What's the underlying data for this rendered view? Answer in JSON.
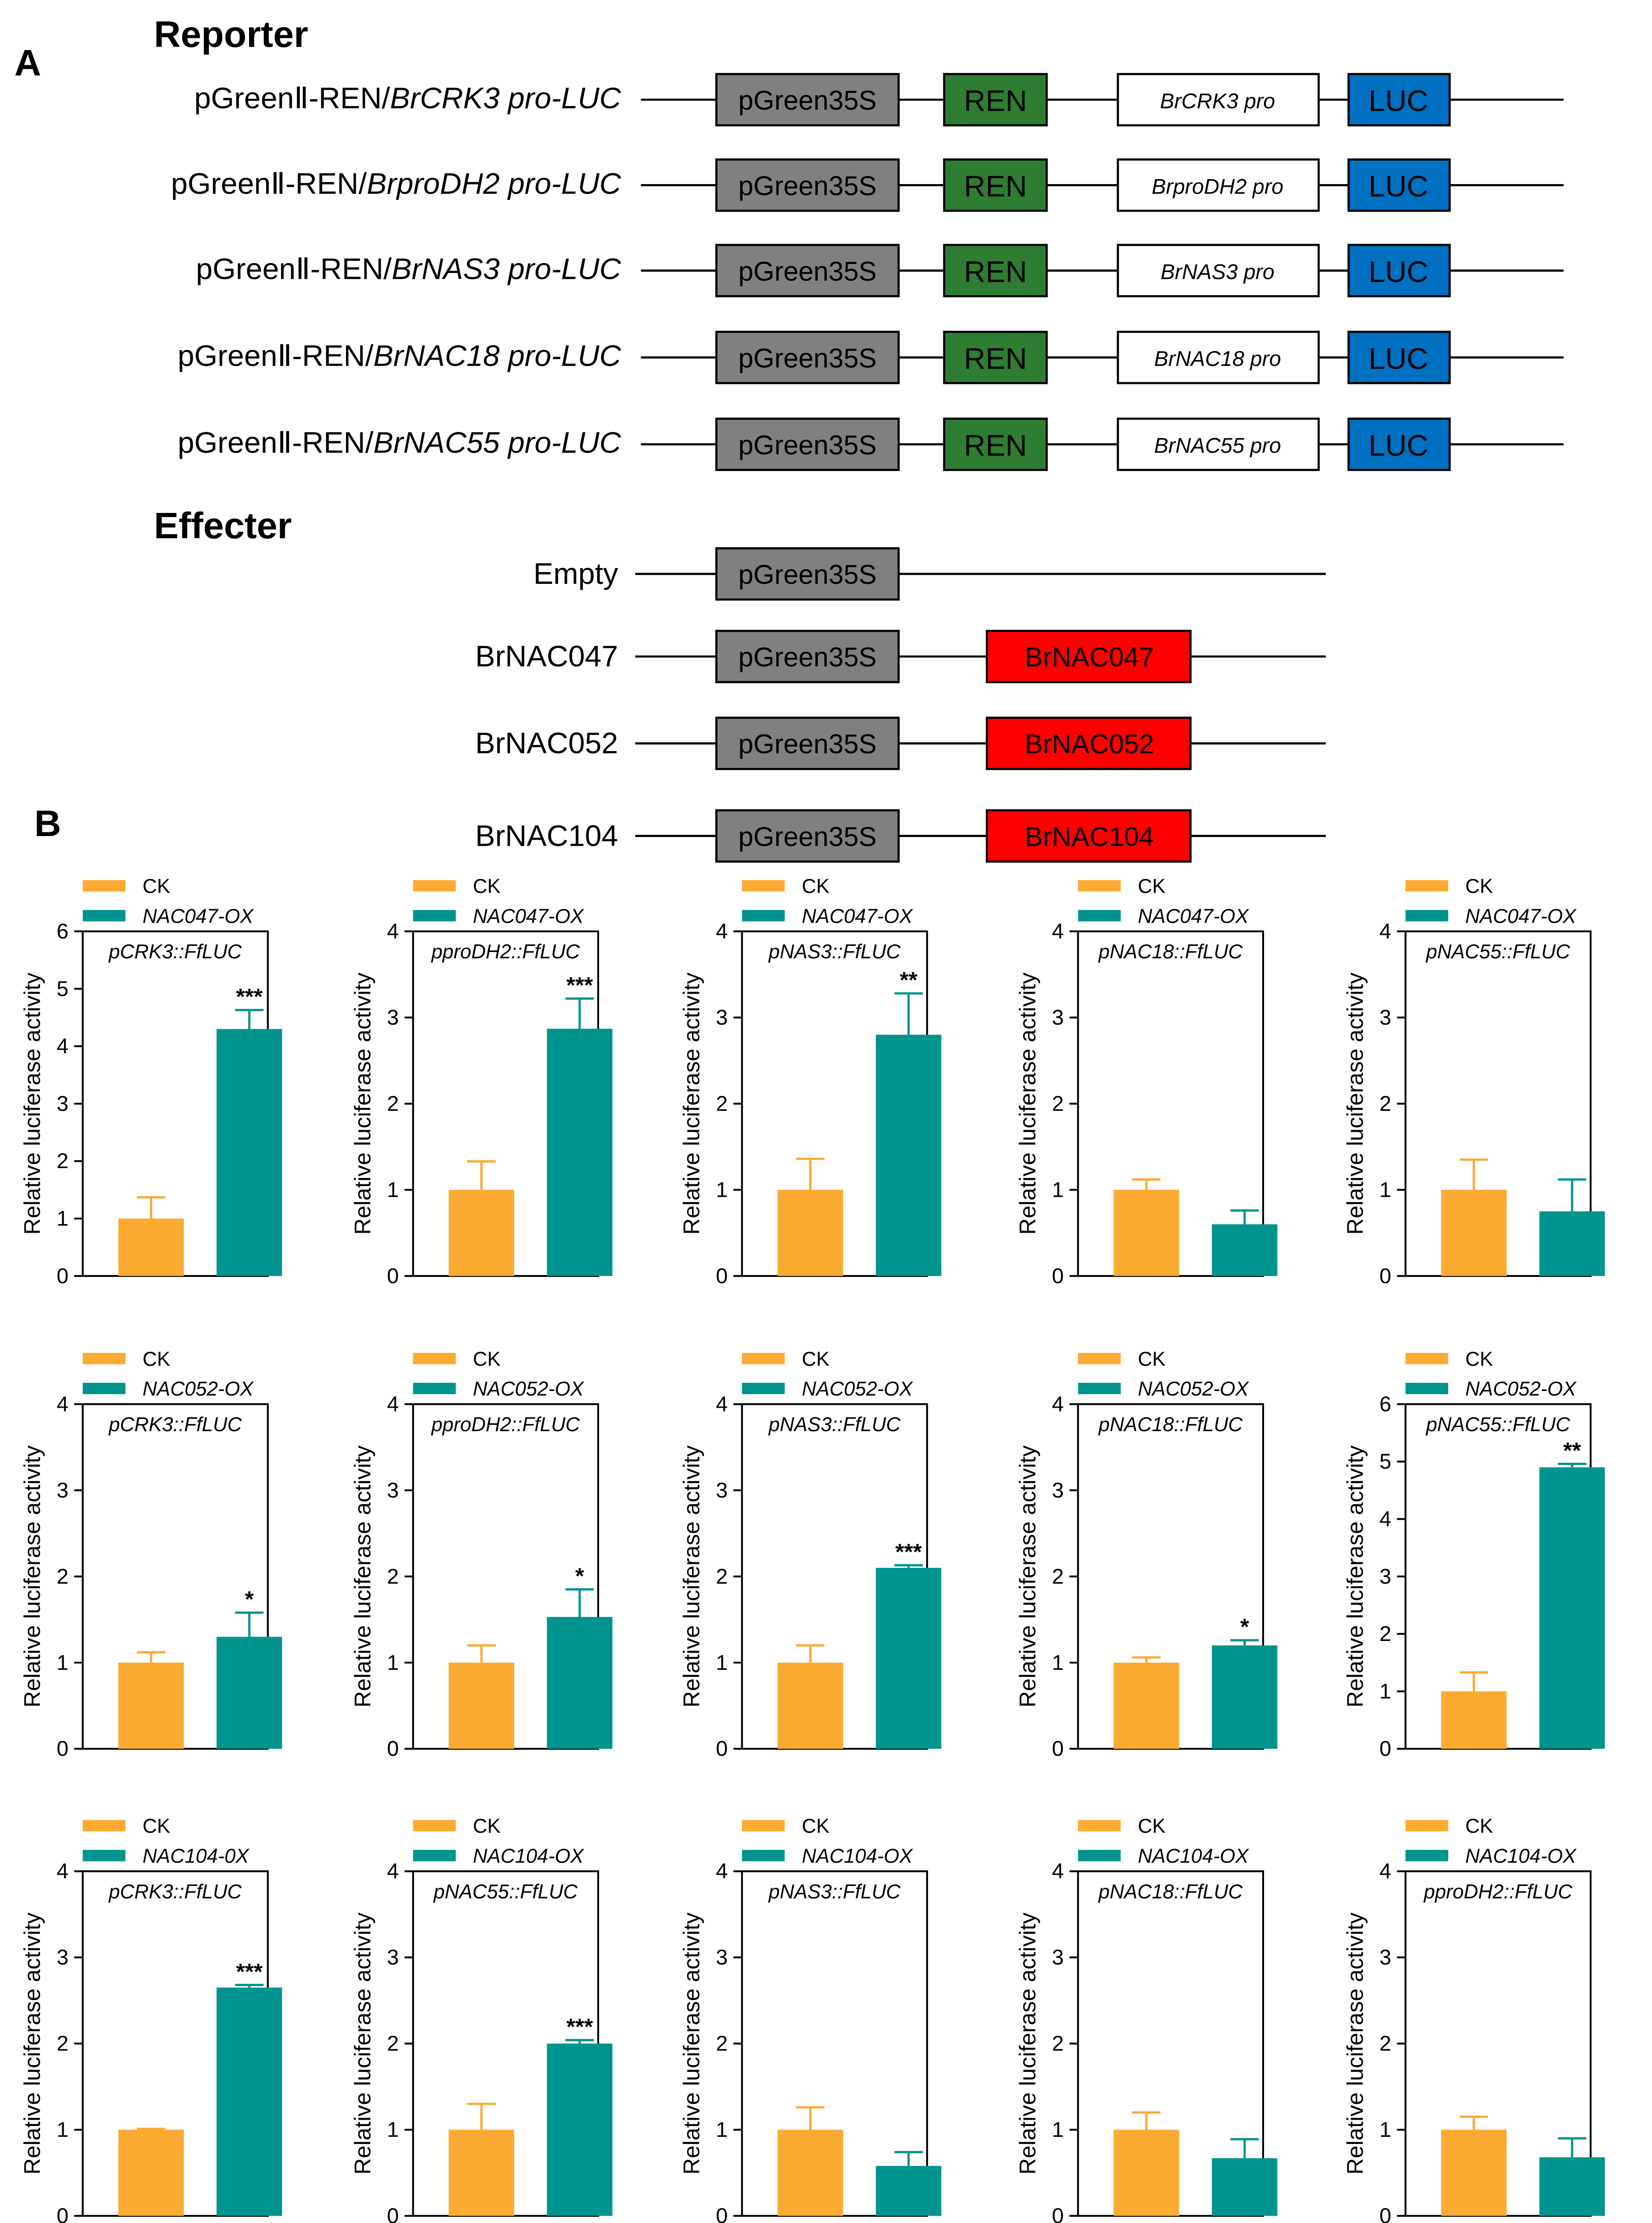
{
  "panel_a": {
    "label": "A",
    "reporter_title": "Reporter",
    "effecter_title": "Effecter",
    "reporters": [
      {
        "prefix": "pGreenⅡ-REN/",
        "name": "BrCRK3 pro-LUC",
        "promoter": "BrCRK3 pro",
        "vector": "pGreen35S",
        "ren": "REN",
        "luc": "LUC"
      },
      {
        "prefix": "pGreenⅡ-REN/",
        "name": "BrproDH2 pro-LUC",
        "promoter": "BrproDH2 pro",
        "vector": "pGreen35S",
        "ren": "REN",
        "luc": "LUC"
      },
      {
        "prefix": "pGreenⅡ-REN/",
        "name": "BrNAS3 pro-LUC",
        "promoter": "BrNAS3 pro",
        "vector": "pGreen35S",
        "ren": "REN",
        "luc": "LUC"
      },
      {
        "prefix": "pGreenⅡ-REN/",
        "name": "BrNAC18 pro-LUC",
        "promoter": "BrNAC18 pro",
        "vector": "pGreen35S",
        "ren": "REN",
        "luc": "LUC"
      },
      {
        "prefix": "pGreenⅡ-REN/",
        "name": "BrNAC55 pro-LUC",
        "promoter": "BrNAC55 pro",
        "vector": "pGreen35S",
        "ren": "REN",
        "luc": "LUC"
      }
    ],
    "effecters": [
      {
        "name": "Empty",
        "vector": "pGreen35S",
        "gene": ""
      },
      {
        "name": "BrNAC047",
        "vector": "pGreen35S",
        "gene": "BrNAC047"
      },
      {
        "name": "BrNAC052",
        "vector": "pGreen35S",
        "gene": "BrNAC052"
      },
      {
        "name": "BrNAC104",
        "vector": "pGreen35S",
        "gene": "BrNAC104"
      }
    ],
    "colors": {
      "vector": "#808080",
      "ren": "#2e7d32",
      "luc": "#0070c0",
      "gene": "#ff0000",
      "promoter": "#ffffff"
    }
  },
  "panel_b": {
    "label": "B",
    "colors": {
      "ck": "#fbaa32",
      "ox": "#00948f"
    }
  },
  "chart_data": [
    {
      "type": "bar",
      "row": 0,
      "col": 0,
      "title": "pCRK3::FfLUC",
      "legend": [
        "CK",
        "NAC047-OX"
      ],
      "ylabel": "Relative luciferase activity",
      "ylim": [
        0,
        6
      ],
      "yticks": [
        0,
        1,
        2,
        3,
        4,
        5,
        6
      ],
      "values": [
        1.0,
        4.3
      ],
      "errors": [
        0.37,
        0.33
      ],
      "sig": "***"
    },
    {
      "type": "bar",
      "row": 0,
      "col": 1,
      "title": "pproDH2::FfLUC",
      "legend": [
        "CK",
        "NAC047-OX"
      ],
      "ylabel": "Relative luciferase activity",
      "ylim": [
        0,
        4
      ],
      "yticks": [
        0,
        1,
        2,
        3,
        4
      ],
      "values": [
        1.0,
        2.87
      ],
      "errors": [
        0.33,
        0.35
      ],
      "sig": "***"
    },
    {
      "type": "bar",
      "row": 0,
      "col": 2,
      "title": "pNAS3::FfLUC",
      "legend": [
        "CK",
        "NAC047-OX"
      ],
      "ylabel": "Relative luciferase activity",
      "ylim": [
        0,
        4
      ],
      "yticks": [
        0,
        1,
        2,
        3,
        4
      ],
      "values": [
        1.0,
        2.8
      ],
      "errors": [
        0.36,
        0.48
      ],
      "sig": "**"
    },
    {
      "type": "bar",
      "row": 0,
      "col": 3,
      "title": "pNAC18::FfLUC",
      "legend": [
        "CK",
        "NAC047-OX"
      ],
      "ylabel": "Relative luciferase activity",
      "ylim": [
        0,
        4
      ],
      "yticks": [
        0,
        1,
        2,
        3,
        4
      ],
      "values": [
        1.0,
        0.6
      ],
      "errors": [
        0.12,
        0.16
      ],
      "sig": ""
    },
    {
      "type": "bar",
      "row": 0,
      "col": 4,
      "title": "pNAC55::FfLUC",
      "legend": [
        "CK",
        "NAC047-OX"
      ],
      "ylabel": "Relative luciferase activity",
      "ylim": [
        0,
        4
      ],
      "yticks": [
        0,
        1,
        2,
        3,
        4
      ],
      "values": [
        1.0,
        0.75
      ],
      "errors": [
        0.35,
        0.37
      ],
      "sig": ""
    },
    {
      "type": "bar",
      "row": 1,
      "col": 0,
      "title": "pCRK3::FfLUC",
      "legend": [
        "CK",
        "NAC052-OX"
      ],
      "ylabel": "Relative luciferase activity",
      "ylim": [
        0,
        4
      ],
      "yticks": [
        0,
        1,
        2,
        3,
        4
      ],
      "values": [
        1.0,
        1.3
      ],
      "errors": [
        0.12,
        0.28
      ],
      "sig": "*"
    },
    {
      "type": "bar",
      "row": 1,
      "col": 1,
      "title": "pproDH2::FfLUC",
      "legend": [
        "CK",
        "NAC052-OX"
      ],
      "ylabel": "Relative luciferase activity",
      "ylim": [
        0,
        4
      ],
      "yticks": [
        0,
        1,
        2,
        3,
        4
      ],
      "values": [
        1.0,
        1.53
      ],
      "errors": [
        0.2,
        0.32
      ],
      "sig": "*"
    },
    {
      "type": "bar",
      "row": 1,
      "col": 2,
      "title": "pNAS3::FfLUC",
      "legend": [
        "CK",
        "NAC052-OX"
      ],
      "ylabel": "Relative luciferase activity",
      "ylim": [
        0,
        4
      ],
      "yticks": [
        0,
        1,
        2,
        3,
        4
      ],
      "values": [
        1.0,
        2.1
      ],
      "errors": [
        0.2,
        0.03
      ],
      "sig": "***"
    },
    {
      "type": "bar",
      "row": 1,
      "col": 3,
      "title": "pNAC18::FfLUC",
      "legend": [
        "CK",
        "NAC052-OX"
      ],
      "ylabel": "Relative luciferase activity",
      "ylim": [
        0,
        4
      ],
      "yticks": [
        0,
        1,
        2,
        3,
        4
      ],
      "values": [
        1.0,
        1.2
      ],
      "errors": [
        0.06,
        0.06
      ],
      "sig": "*"
    },
    {
      "type": "bar",
      "row": 1,
      "col": 4,
      "title": "pNAC55::FfLUC",
      "legend": [
        "CK",
        "NAC052-OX"
      ],
      "ylabel": "Relative luciferase activity",
      "ylim": [
        0,
        6
      ],
      "yticks": [
        0,
        1,
        2,
        3,
        4,
        5,
        6
      ],
      "values": [
        1.0,
        4.9
      ],
      "errors": [
        0.33,
        0.06
      ],
      "sig": "**"
    },
    {
      "type": "bar",
      "row": 2,
      "col": 0,
      "title": "pCRK3::FfLUC",
      "legend": [
        "CK",
        "NAC104-0X"
      ],
      "ylabel": "Relative luciferase activity",
      "ylim": [
        0,
        4
      ],
      "yticks": [
        0,
        1,
        2,
        3,
        4
      ],
      "values": [
        1.0,
        2.65
      ],
      "errors": [
        0.01,
        0.03
      ],
      "sig": "***"
    },
    {
      "type": "bar",
      "row": 2,
      "col": 1,
      "title": "pNAC55::FfLUC",
      "legend": [
        "CK",
        "NAC104-OX"
      ],
      "ylabel": "Relative luciferase activity",
      "ylim": [
        0,
        4
      ],
      "yticks": [
        0,
        1,
        2,
        3,
        4
      ],
      "values": [
        1.0,
        2.0
      ],
      "errors": [
        0.3,
        0.04
      ],
      "sig": "***"
    },
    {
      "type": "bar",
      "row": 2,
      "col": 2,
      "title": "pNAS3::FfLUC",
      "legend": [
        "CK",
        "NAC104-OX"
      ],
      "ylabel": "Relative luciferase activity",
      "ylim": [
        0,
        4
      ],
      "yticks": [
        0,
        1,
        2,
        3,
        4
      ],
      "values": [
        1.0,
        0.58
      ],
      "errors": [
        0.26,
        0.16
      ],
      "sig": ""
    },
    {
      "type": "bar",
      "row": 2,
      "col": 3,
      "title": "pNAC18::FfLUC",
      "legend": [
        "CK",
        "NAC104-OX"
      ],
      "ylabel": "Relative luciferase activity",
      "ylim": [
        0,
        4
      ],
      "yticks": [
        0,
        1,
        2,
        3,
        4
      ],
      "values": [
        1.0,
        0.67
      ],
      "errors": [
        0.2,
        0.22
      ],
      "sig": ""
    },
    {
      "type": "bar",
      "row": 2,
      "col": 4,
      "title": "pproDH2::FfLUC",
      "legend": [
        "CK",
        "NAC104-OX"
      ],
      "ylabel": "Relative luciferase activity",
      "ylim": [
        0,
        4
      ],
      "yticks": [
        0,
        1,
        2,
        3,
        4
      ],
      "values": [
        1.0,
        0.68
      ],
      "errors": [
        0.15,
        0.22
      ],
      "sig": ""
    }
  ]
}
